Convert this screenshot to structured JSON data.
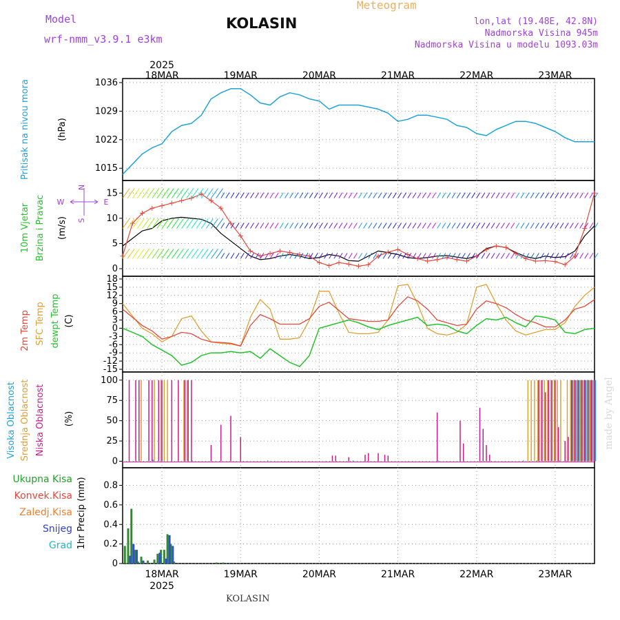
{
  "header": {
    "model_label": "Model",
    "model_name": "wrf-nmm_v3.9.1  e3km",
    "station": "KOLASIN",
    "meteogram": "Meteogram",
    "lonlat": "lon,lat (19.48E, 42.8N)",
    "altitude": "Nadmorska Visina 945m",
    "model_altitude": "Nadmorska Visina u modelu 1093.03m",
    "footer_station": "KOLASIN",
    "credit": "made by Angel"
  },
  "colors": {
    "pressure": "#1fa2dc",
    "temp2m": "#e8463a",
    "sfc_temp": "#e0a030",
    "dewpt": "#22c42a",
    "high_cloud": "#1fa2dc",
    "mid_cloud": "#e0a030",
    "low_cloud": "#cc1a8c",
    "title_orange": "#e8b060",
    "purple": "#a040e0",
    "grid": "#9a9a9a"
  },
  "chart_data": [
    {
      "id": "pressure",
      "type": "line",
      "ylabel": "Pritisak na nivou mora",
      "yunit": "(hPa)",
      "yticks": [
        1015,
        1022,
        1029,
        1036
      ],
      "ylim": [
        1012,
        1037
      ],
      "x_start_hours": 0,
      "x_end_hours": 144,
      "series": [
        {
          "name": "Pritisak na nivou mora",
          "x": [
            0,
            3,
            6,
            9,
            12,
            15,
            18,
            21,
            24,
            27,
            30,
            33,
            36,
            39,
            42,
            45,
            48,
            51,
            54,
            57,
            60,
            63,
            66,
            69,
            72,
            75,
            78,
            81,
            84,
            87,
            90,
            93,
            96,
            99,
            102,
            105,
            108,
            111,
            114,
            117,
            120,
            123,
            126,
            129,
            132,
            135,
            138,
            141,
            144
          ],
          "values": [
            1013.5,
            1016,
            1018.5,
            1020,
            1021,
            1024,
            1025.5,
            1026,
            1028,
            1032,
            1033.5,
            1034.5,
            1034.5,
            1033,
            1031,
            1030.5,
            1032.5,
            1033.5,
            1033,
            1032,
            1031.5,
            1029.5,
            1030.5,
            1030.5,
            1030.5,
            1030,
            1029.5,
            1028.5,
            1026.5,
            1027,
            1028,
            1028,
            1027.5,
            1027,
            1025.5,
            1025,
            1023.5,
            1023,
            1024.5,
            1025.5,
            1026.5,
            1026.5,
            1026,
            1025,
            1024,
            1022.5,
            1021.5,
            1021.5,
            1021.5
          ]
        }
      ]
    },
    {
      "id": "wind",
      "type": "line",
      "ylabel": "10m Vjetar Brzina i Pravac",
      "yunit": "(m/s)",
      "direction_key": [
        "N",
        "W",
        "E",
        "S"
      ],
      "yticks": [
        0,
        5,
        10,
        15
      ],
      "ylim": [
        -1.5,
        17.5
      ],
      "series": [
        {
          "name": "Brzina vjetra",
          "x": [
            0,
            3,
            6,
            9,
            12,
            15,
            18,
            21,
            24,
            27,
            30,
            33,
            36,
            39,
            42,
            45,
            48,
            51,
            54,
            57,
            60,
            63,
            66,
            69,
            72,
            75,
            78,
            81,
            84,
            87,
            90,
            93,
            96,
            99,
            102,
            105,
            108,
            111,
            114,
            117,
            120,
            123,
            126,
            129,
            132,
            135,
            138,
            141,
            144
          ],
          "values": [
            4.5,
            6,
            7.5,
            8,
            9.5,
            10,
            10.2,
            10,
            9.8,
            9,
            7,
            5.5,
            4,
            2.5,
            1.8,
            2,
            2.5,
            2.8,
            2.5,
            2,
            2.2,
            2.8,
            2.5,
            1.6,
            1.5,
            2.5,
            3.5,
            3.2,
            2.8,
            2.2,
            2,
            2.2,
            2.5,
            2.6,
            2.3,
            2,
            2.5,
            4,
            4.5,
            4.2,
            3.2,
            2.4,
            2,
            2.5,
            2.2,
            2.4,
            3.5,
            6.5,
            8.5
          ]
        },
        {
          "name": "Udari vjetra",
          "x": [
            0,
            3,
            6,
            9,
            12,
            15,
            18,
            21,
            24,
            27,
            30,
            33,
            36,
            39,
            42,
            45,
            48,
            51,
            54,
            57,
            60,
            63,
            66,
            69,
            72,
            75,
            78,
            81,
            84,
            87,
            90,
            93,
            96,
            99,
            102,
            105,
            108,
            111,
            114,
            117,
            120,
            123,
            126,
            129,
            132,
            135,
            138,
            141,
            144
          ],
          "values": [
            2.5,
            9,
            11,
            12,
            12.5,
            13,
            13.5,
            14,
            14.8,
            13.5,
            12,
            9,
            6.5,
            3.5,
            2.5,
            3,
            3.5,
            3.2,
            2.8,
            2.5,
            1.2,
            0.6,
            1.2,
            0.9,
            0.5,
            0.8,
            2.5,
            3.3,
            3.8,
            2.8,
            2,
            1.5,
            1.8,
            2.2,
            1.8,
            1.5,
            2.5,
            3.8,
            4.5,
            4.2,
            3,
            2,
            1.5,
            1.6,
            1.4,
            0.8,
            2.5,
            8,
            15
          ]
        }
      ]
    },
    {
      "id": "temperature",
      "type": "line",
      "ylabel": "2m Temp / SFC Temp / dewpt Temp",
      "yunit": "(C)",
      "yticks": [
        -15,
        -12,
        -9,
        -6,
        -3,
        0,
        3,
        6,
        9,
        12,
        15,
        18
      ],
      "ylim": [
        -16,
        19
      ],
      "series": [
        {
          "name": "2m Temp",
          "x": [
            0,
            3,
            6,
            9,
            12,
            15,
            18,
            21,
            24,
            27,
            30,
            33,
            36,
            39,
            42,
            45,
            48,
            51,
            54,
            57,
            60,
            63,
            66,
            69,
            72,
            75,
            78,
            81,
            84,
            87,
            90,
            93,
            96,
            99,
            102,
            105,
            108,
            111,
            114,
            117,
            120,
            123,
            126,
            129,
            132,
            135,
            138,
            141,
            144
          ],
          "values": [
            7,
            4,
            1,
            -1,
            -4,
            -3,
            -1.5,
            -2,
            -4,
            -5,
            -5.2,
            -5.5,
            -6.5,
            1,
            5,
            3.5,
            1.5,
            1.5,
            1.5,
            3.5,
            8,
            9.5,
            6.5,
            3.5,
            3,
            2.5,
            2.5,
            3,
            8,
            11.5,
            10,
            7,
            3,
            2,
            1,
            1.5,
            7,
            10,
            9,
            7.5,
            5,
            3,
            2,
            0.5,
            0.5,
            3,
            7,
            8,
            10.5
          ]
        },
        {
          "name": "SFC Temp",
          "x": [
            0,
            3,
            6,
            9,
            12,
            15,
            18,
            21,
            24,
            27,
            30,
            33,
            36,
            39,
            42,
            45,
            48,
            51,
            54,
            57,
            60,
            63,
            66,
            69,
            72,
            75,
            78,
            81,
            84,
            87,
            90,
            93,
            96,
            99,
            102,
            105,
            108,
            111,
            114,
            117,
            120,
            123,
            126,
            129,
            132,
            135,
            138,
            141,
            144
          ],
          "values": [
            9,
            4.5,
            0,
            -2,
            -5,
            -3,
            3.5,
            4.5,
            -1,
            -5,
            -5.5,
            -5.8,
            -6.5,
            4,
            10.5,
            7,
            -4,
            -4,
            -3.5,
            3,
            13.5,
            13.5,
            5.5,
            -1.5,
            -2,
            -2,
            -1.5,
            3,
            15.5,
            16,
            9,
            0,
            -2,
            -2.5,
            -1.5,
            1.5,
            15,
            16,
            9,
            3,
            -1,
            -2.5,
            -1.5,
            -0.5,
            -0.5,
            2,
            8,
            12,
            15
          ]
        },
        {
          "name": "dewpt Temp",
          "x": [
            0,
            3,
            6,
            9,
            12,
            15,
            18,
            21,
            24,
            27,
            30,
            33,
            36,
            39,
            42,
            45,
            48,
            51,
            54,
            57,
            60,
            63,
            66,
            69,
            72,
            75,
            78,
            81,
            84,
            87,
            90,
            93,
            96,
            99,
            102,
            105,
            108,
            111,
            114,
            117,
            120,
            123,
            126,
            129,
            132,
            135,
            138,
            141,
            144
          ],
          "values": [
            0,
            -1.5,
            -3,
            -6,
            -8,
            -10,
            -13.5,
            -12.5,
            -10,
            -9,
            -9,
            -8.5,
            -9,
            -8.5,
            -11,
            -7.5,
            -10,
            -12.5,
            -14,
            -10,
            0,
            1,
            2,
            3,
            2,
            0.5,
            -0.5,
            1,
            2,
            3,
            4,
            1,
            1.5,
            1,
            -1,
            -2,
            1,
            3.5,
            3,
            4,
            2,
            0.5,
            4.5,
            4,
            3,
            -1.5,
            -2,
            -0.5,
            0
          ]
        }
      ]
    },
    {
      "id": "clouds",
      "type": "bar",
      "ylabel": "Visoka Oblacnost / Srednja Oblacnost / Niska Oblacnost",
      "yunit": "(%)",
      "yticks": [
        0,
        25,
        50,
        75,
        100
      ],
      "ylim": [
        0,
        110
      ],
      "series": [
        {
          "name": "Visoka Oblacnost",
          "x": [
            9,
            21,
            44,
            70,
            96,
            122,
            126,
            133,
            135,
            137,
            138,
            139,
            140,
            141,
            142,
            143,
            144
          ],
          "values": [
            2,
            1,
            1,
            1,
            1,
            1,
            1,
            1,
            1,
            100,
            100,
            100,
            100,
            100,
            100,
            100,
            100
          ]
        },
        {
          "name": "Srednja Oblacnost",
          "x": [
            6,
            10,
            12,
            13,
            14,
            19,
            20,
            124,
            125,
            126,
            127,
            128,
            129,
            130,
            131,
            132,
            133,
            134,
            136,
            137,
            138,
            139,
            140,
            141,
            142,
            143,
            144
          ],
          "values": [
            100,
            100,
            100,
            100,
            100,
            100,
            100,
            100,
            100,
            100,
            100,
            100,
            100,
            100,
            100,
            100,
            100,
            100,
            100,
            100,
            100,
            100,
            100,
            100,
            100,
            100,
            100
          ]
        },
        {
          "name": "Niska Oblacnost",
          "x": [
            2,
            4,
            5,
            8,
            9,
            11,
            12,
            15,
            17,
            19,
            20,
            21,
            27,
            30,
            33,
            36,
            64,
            65,
            69,
            74,
            75,
            78,
            80,
            81,
            96,
            103,
            104,
            109,
            110,
            111,
            112,
            127,
            128,
            129,
            130,
            131,
            132,
            133,
            135,
            136,
            137,
            138,
            139,
            140,
            141,
            142,
            143,
            144
          ],
          "values": [
            100,
            100,
            100,
            100,
            100,
            100,
            100,
            100,
            100,
            100,
            100,
            100,
            20,
            45,
            56,
            30,
            7,
            7,
            5,
            8,
            10,
            10,
            8,
            7,
            60,
            50,
            22,
            66,
            40,
            20,
            8,
            100,
            100,
            85,
            100,
            100,
            100,
            42,
            25,
            30,
            100,
            100,
            100,
            100,
            100,
            100,
            100,
            100
          ]
        }
      ]
    },
    {
      "id": "precip",
      "type": "bar",
      "ylabel": "1hr Precip",
      "yunit": "(mm)",
      "legend": [
        "Ukupna Kisa",
        "Konvek.Kisa",
        "Zaledj.Kisa",
        "Snijeg",
        "Grad"
      ],
      "yticks": [
        0,
        0.2,
        0.4,
        0.6,
        0.8
      ],
      "ylim": [
        0,
        0.98
      ],
      "series": [
        {
          "name": "Ukupna Kisa",
          "x": [
            1,
            2,
            3,
            4,
            5,
            6,
            8,
            10,
            11,
            12,
            13,
            14,
            15,
            16,
            29,
            31
          ],
          "values": [
            0.18,
            0.36,
            0.56,
            0.14,
            0.02,
            0.07,
            0.03,
            0.04,
            0.1,
            0.14,
            0.14,
            0.3,
            0.2,
            0.02,
            0.01,
            0.01
          ]
        },
        {
          "name": "Snijeg",
          "x": [
            2,
            3,
            4,
            6,
            11,
            13,
            14,
            15
          ],
          "values": [
            0.08,
            0.2,
            0.14,
            0.03,
            0.11,
            0.05,
            0.29,
            0.18
          ]
        }
      ]
    }
  ],
  "axes": {
    "year_label": "2025",
    "x_dates": [
      {
        "label": "18MAR",
        "hour": 12
      },
      {
        "label": "19MAR",
        "hour": 36
      },
      {
        "label": "20MAR",
        "hour": 60
      },
      {
        "label": "21MAR",
        "hour": 84
      },
      {
        "label": "22MAR",
        "hour": 108
      },
      {
        "label": "23MAR",
        "hour": 132
      }
    ]
  }
}
